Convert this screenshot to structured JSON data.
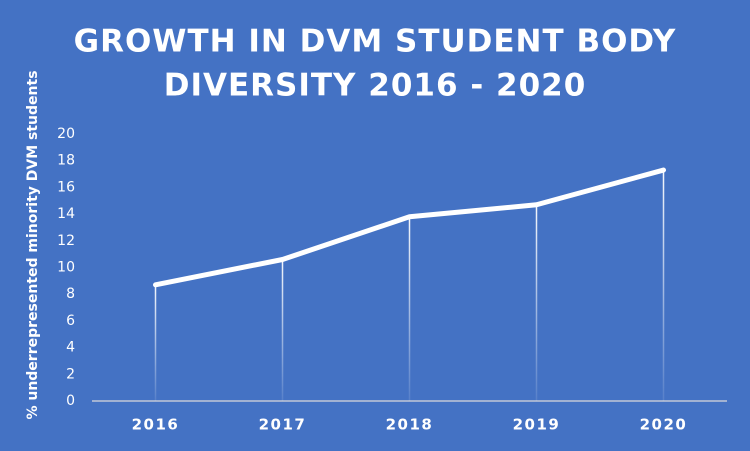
{
  "chart_data": {
    "type": "line",
    "title": [
      "GROWTH IN DVM STUDENT BODY",
      "DIVERSITY 2016 - 2020"
    ],
    "y_label": "% underrepresented minority DVM students",
    "categories": [
      "2016",
      "2017",
      "2018",
      "2019",
      "2020"
    ],
    "values": [
      8.7,
      10.6,
      13.8,
      14.7,
      17.3
    ],
    "color": "#ffffff",
    "background": "#4472c4",
    "ylim": [
      0,
      20
    ],
    "yticks": [
      0,
      2,
      4,
      6,
      8,
      10,
      12,
      14,
      16,
      18,
      20
    ],
    "grid": false,
    "drop_lines": true
  }
}
